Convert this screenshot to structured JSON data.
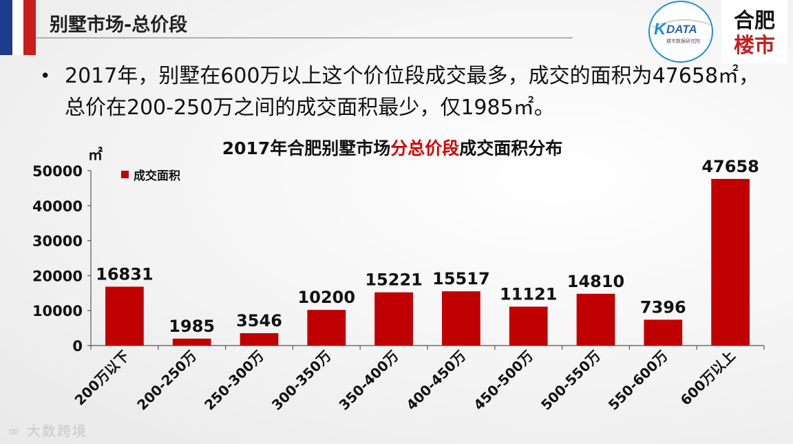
{
  "header": {
    "title": "别墅市场-总价段",
    "logo_left_text": "DATA",
    "logo_left_subtext": "楼市数据研究院",
    "logo_right_text": "合肥楼市"
  },
  "bullet": {
    "text": "2017年，别墅在600万以上这个价位段成交最多，成交的面积为47658㎡，总价在200-250万之间的成交面积最少，仅1985㎡。"
  },
  "chart_title": {
    "part1": "2017年合肥别墅市场",
    "highlight": "分总价段",
    "part2": "成交面积分布"
  },
  "watermark": "大数跨境",
  "colors": {
    "bar": "#c00000",
    "title_highlight": "#d40000",
    "flag_blue": "#1f3b8c",
    "flag_white": "#ffffff",
    "flag_red": "#c81e1e"
  },
  "chart_data": {
    "type": "bar",
    "title": "2017年合肥别墅市场分总价段成交面积分布",
    "ylabel": "㎡",
    "categories": [
      "200万以下",
      "200-250万",
      "250-300万",
      "300-350万",
      "350-400万",
      "400-450万",
      "450-500万",
      "500-550万",
      "550-600万",
      "600万以上"
    ],
    "series": [
      {
        "name": "成交面积",
        "values": [
          16831,
          1985,
          3546,
          10200,
          15221,
          15517,
          11121,
          14810,
          7396,
          47658
        ]
      }
    ],
    "ylim": [
      0,
      50000
    ],
    "yticks": [
      0,
      10000,
      20000,
      30000,
      40000,
      50000
    ],
    "legend_position": "top-left",
    "grid": false
  }
}
